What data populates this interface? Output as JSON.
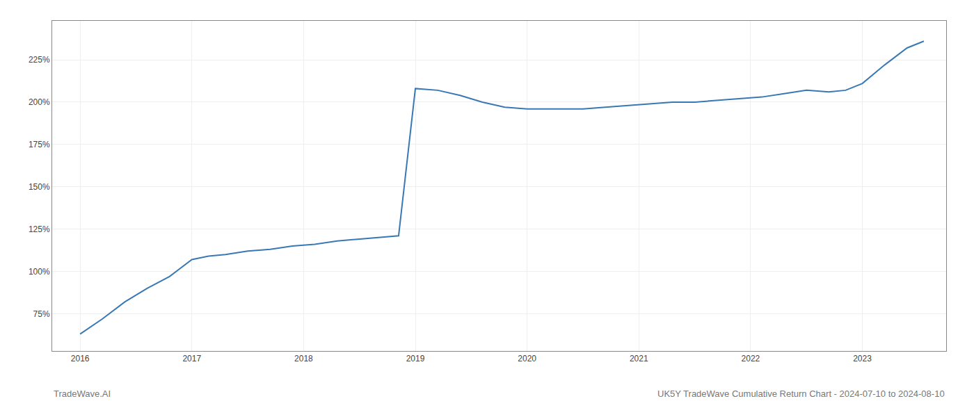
{
  "chart_data": {
    "type": "line",
    "x": [
      2016.0,
      2016.2,
      2016.4,
      2016.6,
      2016.8,
      2017.0,
      2017.15,
      2017.3,
      2017.5,
      2017.7,
      2017.9,
      2018.1,
      2018.3,
      2018.5,
      2018.7,
      2018.85,
      2019.0,
      2019.2,
      2019.4,
      2019.6,
      2019.8,
      2020.0,
      2020.3,
      2020.5,
      2020.7,
      2020.9,
      2021.1,
      2021.3,
      2021.5,
      2021.7,
      2021.9,
      2022.1,
      2022.3,
      2022.5,
      2022.7,
      2022.85,
      2023.0,
      2023.2,
      2023.4,
      2023.55
    ],
    "values": [
      63,
      72,
      82,
      90,
      97,
      107,
      109,
      110,
      112,
      113,
      115,
      116,
      118,
      119,
      120,
      121,
      208,
      207,
      204,
      200,
      197,
      196,
      196,
      196,
      197,
      198,
      199,
      200,
      200,
      201,
      202,
      203,
      205,
      207,
      206,
      207,
      211,
      222,
      232,
      236
    ],
    "color": "#3878b4",
    "xlim": [
      2015.75,
      2023.75
    ],
    "xticks": [
      2016,
      2017,
      2018,
      2019,
      2020,
      2021,
      2022,
      2023
    ],
    "ylim": [
      53,
      248
    ],
    "yticks": [
      {
        "value": 75,
        "label": "75%"
      },
      {
        "value": 100,
        "label": "100%"
      },
      {
        "value": 125,
        "label": "125%"
      },
      {
        "value": 150,
        "label": "150%"
      },
      {
        "value": 175,
        "label": "175%"
      },
      {
        "value": 200,
        "label": "200%"
      },
      {
        "value": 225,
        "label": "225%"
      }
    ],
    "grid": true,
    "annotations": [
      "TradeWave.AI",
      "UK5Y TradeWave Cumulative Return Chart - 2024-07-10 to 2024-08-10"
    ]
  }
}
